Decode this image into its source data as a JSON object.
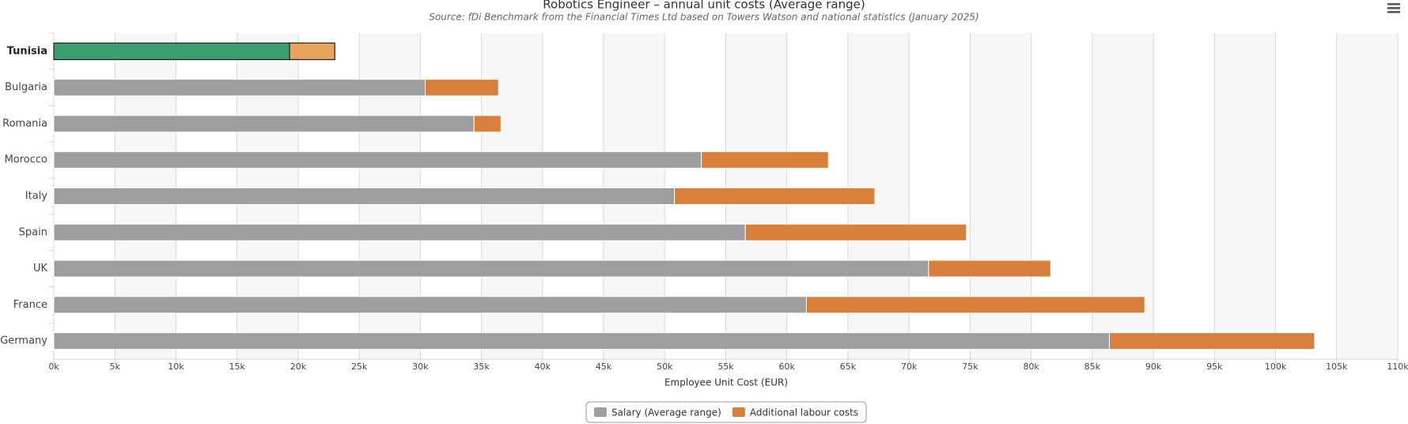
{
  "chart_data": {
    "type": "stacked_hbar",
    "title": "Robotics Engineer – annual unit costs (Average range)",
    "subtitle": "Source: fDi Benchmark from the Financial Times Ltd based on Towers Watson and national statistics (January 2025)",
    "x_label": "Employee Unit Cost (EUR)",
    "categories": [
      "Tunisia",
      "Bulgaria",
      "Romania",
      "Morocco",
      "Italy",
      "Spain",
      "UK",
      "France",
      "Germany"
    ],
    "series": [
      {
        "name": "Salary (Average range)",
        "color": "#9e9e9e",
        "colors": [
          "#3a9e6e",
          "#9e9e9e",
          "#9e9e9e",
          "#9e9e9e",
          "#9e9e9e",
          "#9e9e9e",
          "#9e9e9e",
          "#9e9e9e",
          "#9e9e9e"
        ],
        "values": [
          19300,
          30400,
          34400,
          53000,
          50800,
          56600,
          71600,
          61600,
          86400
        ]
      },
      {
        "name": "Additional labour costs",
        "color": "#d87f3c",
        "colors": [
          "#e8a45c",
          "#d87f3c",
          "#d87f3c",
          "#d87f3c",
          "#d87f3c",
          "#d87f3c",
          "#d87f3c",
          "#d87f3c",
          "#d87f3c"
        ],
        "values": [
          3700,
          6000,
          2200,
          10400,
          16400,
          18100,
          10000,
          27700,
          16800
        ]
      }
    ],
    "xlim": [
      0,
      110000
    ],
    "xticks": [
      {
        "value": 0,
        "label": "0k"
      },
      {
        "value": 5000,
        "label": "5k"
      },
      {
        "value": 10000,
        "label": "10k"
      },
      {
        "value": 15000,
        "label": "15k"
      },
      {
        "value": 20000,
        "label": "20k"
      },
      {
        "value": 25000,
        "label": "25k"
      },
      {
        "value": 30000,
        "label": "30k"
      },
      {
        "value": 35000,
        "label": "35k"
      },
      {
        "value": 40000,
        "label": "40k"
      },
      {
        "value": 45000,
        "label": "45k"
      },
      {
        "value": 50000,
        "label": "50k"
      },
      {
        "value": 55000,
        "label": "55k"
      },
      {
        "value": 60000,
        "label": "60k"
      },
      {
        "value": 65000,
        "label": "65k"
      },
      {
        "value": 70000,
        "label": "70k"
      },
      {
        "value": 75000,
        "label": "75k"
      },
      {
        "value": 80000,
        "label": "80k"
      },
      {
        "value": 85000,
        "label": "85k"
      },
      {
        "value": 90000,
        "label": "90k"
      },
      {
        "value": 95000,
        "label": "95k"
      },
      {
        "value": 100000,
        "label": "100k"
      },
      {
        "value": 105000,
        "label": "105k"
      },
      {
        "value": 110000,
        "label": "110k"
      }
    ],
    "grid": true,
    "alternate_grid": true,
    "legend": "bottom"
  }
}
